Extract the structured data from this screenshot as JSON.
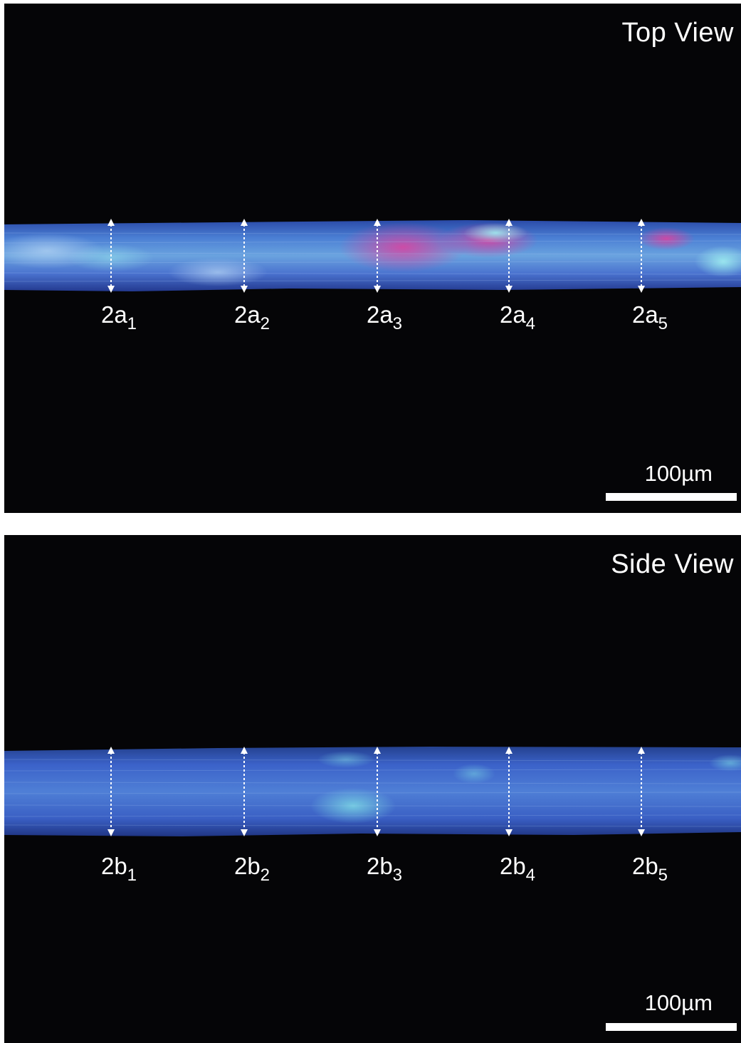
{
  "panels": {
    "top": {
      "view_label": "Top View",
      "scale_label": "100µm",
      "markers": [
        {
          "base": "2a",
          "sub": "1"
        },
        {
          "base": "2a",
          "sub": "2"
        },
        {
          "base": "2a",
          "sub": "3"
        },
        {
          "base": "2a",
          "sub": "4"
        },
        {
          "base": "2a",
          "sub": "5"
        }
      ]
    },
    "bottom": {
      "view_label": "Side View",
      "scale_label": "100µm",
      "markers": [
        {
          "base": "2b",
          "sub": "1"
        },
        {
          "base": "2b",
          "sub": "2"
        },
        {
          "base": "2b",
          "sub": "3"
        },
        {
          "base": "2b",
          "sub": "4"
        },
        {
          "base": "2b",
          "sub": "5"
        }
      ]
    }
  },
  "colors": {
    "background": "#050507",
    "fiber_base": "#3b62c9",
    "fiber_highlight": "#8fd8e8",
    "fiber_accent": "#d0409a",
    "annotation": "#ffffff"
  }
}
